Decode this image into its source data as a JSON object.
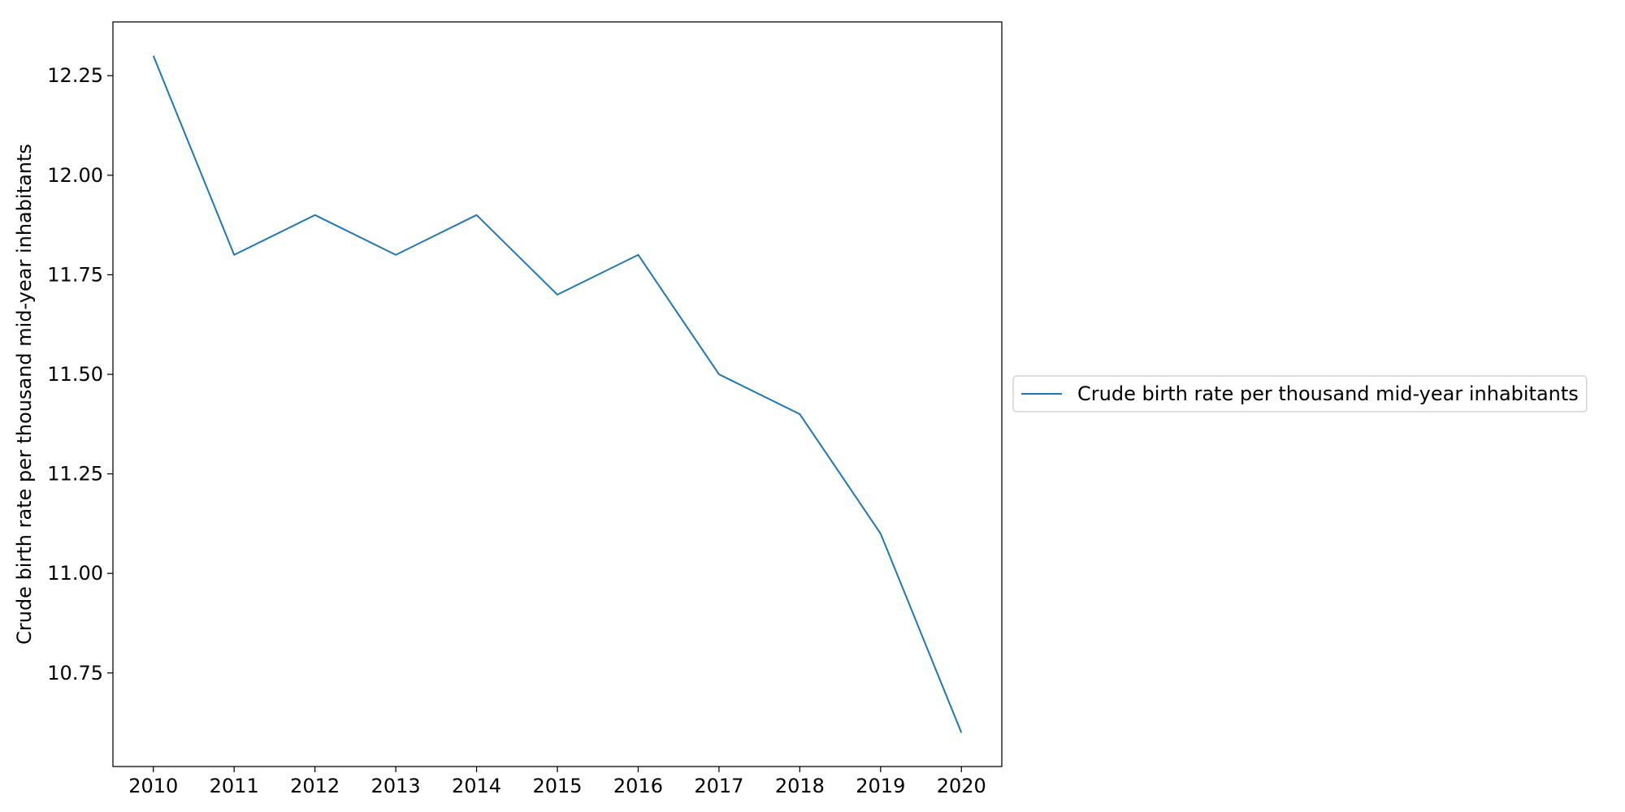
{
  "chart_data": {
    "type": "line",
    "title": "",
    "xlabel": "",
    "ylabel": "Crude birth rate per thousand mid-year inhabitants",
    "x": [
      2010,
      2011,
      2012,
      2013,
      2014,
      2015,
      2016,
      2017,
      2018,
      2019,
      2020
    ],
    "series": [
      {
        "name": "Crude birth rate per thousand mid-year inhabitants",
        "color": "#1f77b4",
        "values": [
          12.3,
          11.8,
          11.9,
          11.8,
          11.9,
          11.7,
          11.8,
          11.5,
          11.4,
          11.1,
          10.6
        ]
      }
    ],
    "xlim": [
      2009.5,
      2020.5
    ],
    "ylim": [
      10.515,
      12.385
    ],
    "xticks": [
      "2010",
      "2011",
      "2012",
      "2013",
      "2014",
      "2015",
      "2016",
      "2017",
      "2018",
      "2019",
      "2020"
    ],
    "yticks": [
      "10.75",
      "11.00",
      "11.25",
      "11.50",
      "11.75",
      "12.00",
      "12.25"
    ],
    "grid": false,
    "legend": {
      "placement": "right-outside",
      "entries": [
        "Crude birth rate per thousand mid-year inhabitants"
      ]
    }
  }
}
